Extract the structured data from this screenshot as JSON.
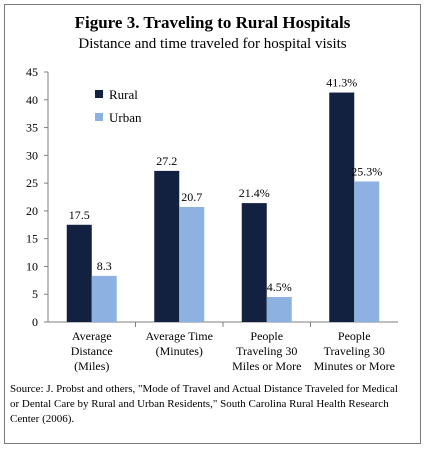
{
  "chart_data": {
    "type": "bar",
    "title": "Figure 3. Traveling to Rural Hospitals",
    "subtitle": "Distance and time traveled for hospital visits",
    "categories": [
      [
        "Average",
        "Distance",
        "(Miles)"
      ],
      [
        "Average Time",
        "(Minutes)"
      ],
      [
        "People",
        "Traveling 30",
        "Miles or More"
      ],
      [
        "People",
        "Traveling 30",
        "Minutes or More"
      ]
    ],
    "series": [
      {
        "name": "Rural",
        "color": "#12213f",
        "values": [
          17.5,
          27.2,
          21.4,
          41.3
        ],
        "labels": [
          "17.5",
          "27.2",
          "21.4%",
          "41.3%"
        ]
      },
      {
        "name": "Urban",
        "color": "#8db2e2",
        "values": [
          8.3,
          20.7,
          4.5,
          25.3
        ],
        "labels": [
          "8.3",
          "20.7",
          "4.5%",
          "25.3%"
        ]
      }
    ],
    "ylim": [
      0,
      45
    ],
    "yticks": [
      "0",
      "5",
      "10",
      "15",
      "20",
      "25",
      "30",
      "35",
      "40",
      "45"
    ],
    "grid": false,
    "legend": "top-left"
  },
  "source": "Source: J. Probst and others, \"Mode of Travel and Actual Distance Traveled for Medical or Dental Care by Rural and Urban Residents,\" South Carolina Rural Health Research Center (2006)."
}
